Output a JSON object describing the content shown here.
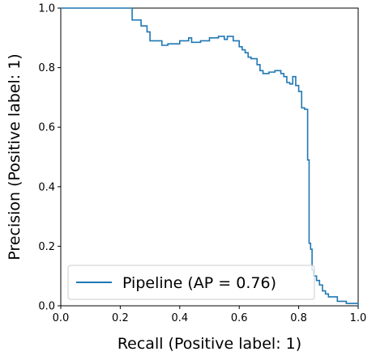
{
  "chart_data": {
    "type": "line",
    "title": "",
    "xlabel": "Recall (Positive label: 1)",
    "ylabel": "Precision (Positive label: 1)",
    "xlim": [
      0.0,
      1.0
    ],
    "ylim": [
      0.0,
      1.0
    ],
    "xticks": [
      "0.0",
      "0.2",
      "0.4",
      "0.6",
      "0.8",
      "1.0"
    ],
    "yticks": [
      "0.0",
      "0.2",
      "0.4",
      "0.6",
      "0.8",
      "1.0"
    ],
    "grid": false,
    "legend_position": "lower-left",
    "line_color": "#1f77b4",
    "series": [
      {
        "name": "Pipeline (AP = 0.76)",
        "drawstyle": "steps-post",
        "x": [
          0.0,
          0.24,
          0.25,
          0.27,
          0.29,
          0.3,
          0.32,
          0.34,
          0.36,
          0.4,
          0.43,
          0.44,
          0.47,
          0.5,
          0.53,
          0.55,
          0.56,
          0.58,
          0.6,
          0.61,
          0.62,
          0.63,
          0.64,
          0.66,
          0.67,
          0.68,
          0.7,
          0.72,
          0.74,
          0.75,
          0.76,
          0.77,
          0.78,
          0.79,
          0.8,
          0.81,
          0.82,
          0.825,
          0.83,
          0.835,
          0.84,
          0.845,
          0.85,
          0.86,
          0.87,
          0.88,
          0.89,
          0.9,
          0.93,
          0.96,
          1.0
        ],
        "y": [
          1.0,
          0.96,
          0.96,
          0.94,
          0.92,
          0.89,
          0.89,
          0.875,
          0.88,
          0.89,
          0.9,
          0.885,
          0.89,
          0.9,
          0.905,
          0.895,
          0.905,
          0.89,
          0.87,
          0.86,
          0.85,
          0.835,
          0.83,
          0.81,
          0.79,
          0.78,
          0.785,
          0.79,
          0.78,
          0.77,
          0.75,
          0.745,
          0.77,
          0.74,
          0.72,
          0.665,
          0.66,
          0.66,
          0.49,
          0.21,
          0.19,
          0.12,
          0.1,
          0.085,
          0.07,
          0.05,
          0.04,
          0.03,
          0.015,
          0.008,
          0.0
        ]
      }
    ]
  }
}
